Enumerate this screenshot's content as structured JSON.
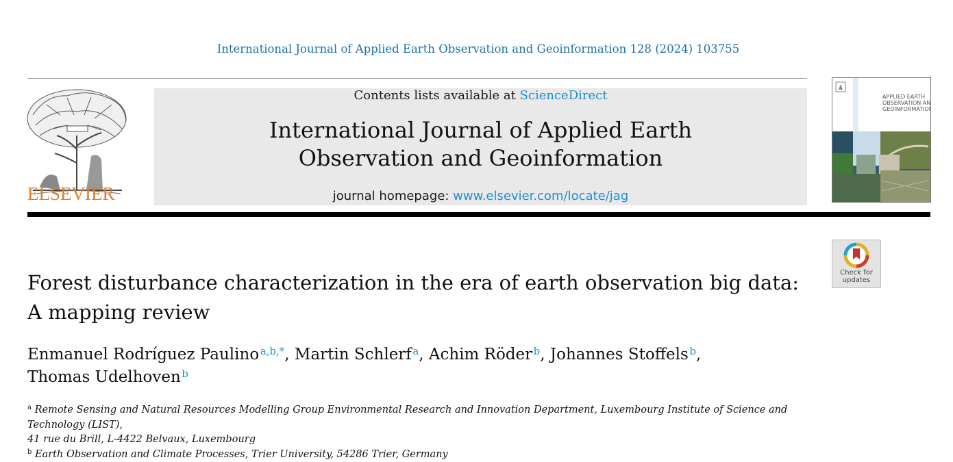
{
  "header": {
    "citation": "International Journal of Applied Earth Observation and Geoinformation 128 (2024) 103755",
    "contents_prefix": "Contents lists available at ",
    "contents_link": "ScienceDirect",
    "journal_title_line1": "International Journal of Applied Earth",
    "journal_title_line2": "Observation and Geoinformation",
    "homepage_prefix": "journal homepage: ",
    "homepage_url": "www.elsevier.com/locate/jag",
    "publisher": "ELSEVIER",
    "cover_title": "APPLIED EARTH OBSERVATION AND GEOINFORMATION"
  },
  "badge": {
    "label_line1": "Check for",
    "label_line2": "updates"
  },
  "article": {
    "title_line1": "Forest disturbance characterization in the era of earth observation big data:",
    "title_line2": "A mapping review",
    "authors": [
      {
        "name": "Enmanuel Rodríguez Paulino",
        "sup": "a,b,*",
        "sep": ", "
      },
      {
        "name": "Martin Schlerf",
        "sup": "a",
        "sep": ", "
      },
      {
        "name": "Achim Röder",
        "sup": "b",
        "sep": ", "
      },
      {
        "name": "Johannes Stoffels",
        "sup": "b",
        "sep": ","
      },
      {
        "name": "Thomas Udelhoven",
        "sup": "b",
        "sep": ""
      }
    ],
    "affiliations": [
      {
        "mark": "a",
        "line1": "Remote Sensing and Natural Resources Modelling Group Environmental Research and Innovation Department, Luxembourg Institute of Science and Technology (LIST),",
        "line2": "41 rue du Brill, L-4422 Belvaux, Luxembourg"
      },
      {
        "mark": "b",
        "line1": "Earth Observation and Climate Processes, Trier University, 54286 Trier, Germany"
      }
    ]
  },
  "colors": {
    "link": "#1f8fcf",
    "citation": "#1f6fa5",
    "elsevier_orange": "#e37d27",
    "banner_gray": "#e9e9e9"
  }
}
